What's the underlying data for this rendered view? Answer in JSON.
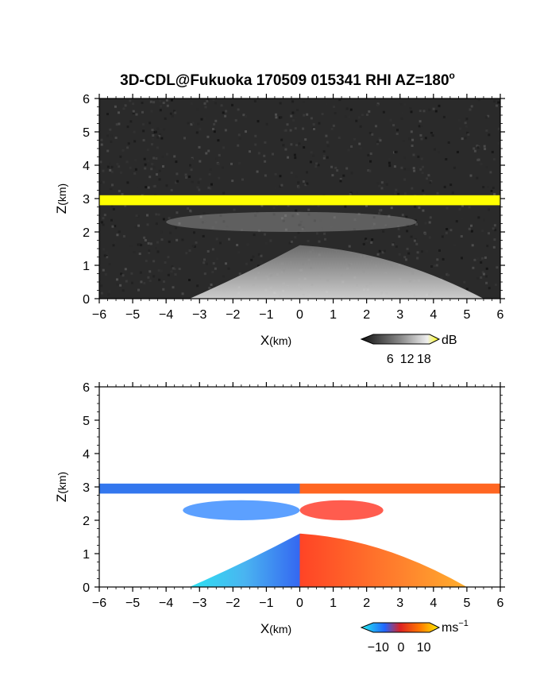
{
  "figure": {
    "title": "3D-CDL@Fukuoka 170509 015341 RHI AZ=180",
    "title_degree_mark": "o"
  },
  "chart_data": [
    {
      "type": "heatmap",
      "name": "reflectivity",
      "xlabel_main": "X",
      "xlabel_unit": "(km)",
      "ylabel_main": "Z",
      "ylabel_unit": "(km)",
      "xlim": [
        -6,
        6
      ],
      "ylim": [
        0,
        6
      ],
      "xticks": [
        -6,
        -5,
        -4,
        -3,
        -2,
        -1,
        0,
        1,
        2,
        3,
        4,
        5,
        6
      ],
      "yticks": [
        0,
        1,
        2,
        3,
        4,
        5,
        6
      ],
      "colorbar": {
        "unit": "dB",
        "ticks": [
          6,
          12,
          18
        ],
        "range": [
          0,
          20
        ],
        "colors": [
          "#111111",
          "#555555",
          "#aaaaaa",
          "#eeeeee",
          "#ffff00"
        ]
      },
      "layers": [
        {
          "label": "cloud-base",
          "z_bottom": 2.8,
          "z_top": 3.1,
          "x": [
            -6,
            6
          ],
          "color": "#ffff00"
        },
        {
          "label": "aerosol-layer",
          "z_bottom": 2.0,
          "z_top": 2.6,
          "x": [
            -4,
            3.5
          ],
          "color": "#8a8a8a"
        },
        {
          "label": "boundary-layer",
          "z_bottom": 0.0,
          "z_top": 1.6,
          "x": [
            -3.3,
            5.5
          ],
          "color": "#c8c8c8"
        }
      ],
      "background_color": "#2a2a2a"
    },
    {
      "type": "heatmap",
      "name": "doppler-velocity",
      "xlabel_main": "X",
      "xlabel_unit": "(km)",
      "ylabel_main": "Z",
      "ylabel_unit": "(km)",
      "xlim": [
        -6,
        6
      ],
      "ylim": [
        0,
        6
      ],
      "xticks": [
        -6,
        -5,
        -4,
        -3,
        -2,
        -1,
        0,
        1,
        2,
        3,
        4,
        5,
        6
      ],
      "yticks": [
        0,
        1,
        2,
        3,
        4,
        5,
        6
      ],
      "colorbar": {
        "unit_main": "ms",
        "unit_exp": "−1",
        "ticks": [
          "−10",
          "0",
          "10"
        ],
        "tick_values": [
          -10,
          0,
          10
        ],
        "range": [
          -15,
          15
        ],
        "colors": [
          "#22eeee",
          "#2266ff",
          "#ff2222",
          "#ff7700",
          "#ffee00"
        ]
      },
      "layers": [
        {
          "label": "cloud-base-negative",
          "z_bottom": 2.8,
          "z_top": 3.1,
          "x": [
            -6,
            0
          ],
          "color": "#3377ee"
        },
        {
          "label": "cloud-base-positive",
          "z_bottom": 2.8,
          "z_top": 3.1,
          "x": [
            0,
            6
          ],
          "color": "#ff6622"
        },
        {
          "label": "mid-negative",
          "z_bottom": 2.0,
          "z_top": 2.6,
          "x": [
            -3.5,
            0
          ],
          "color": "#3388ff"
        },
        {
          "label": "mid-positive",
          "z_bottom": 2.0,
          "z_top": 2.6,
          "x": [
            0,
            2.5
          ],
          "color": "#ff3322"
        },
        {
          "label": "lower-negative",
          "z_bottom": 0.0,
          "z_top": 1.6,
          "x": [
            -3.3,
            0
          ],
          "color": "#2a6ff0"
        },
        {
          "label": "lower-positive",
          "z_bottom": 0.0,
          "z_top": 1.6,
          "x": [
            0,
            5
          ],
          "color": "#ff5a1f"
        }
      ],
      "background_color": "#ffffff"
    }
  ]
}
